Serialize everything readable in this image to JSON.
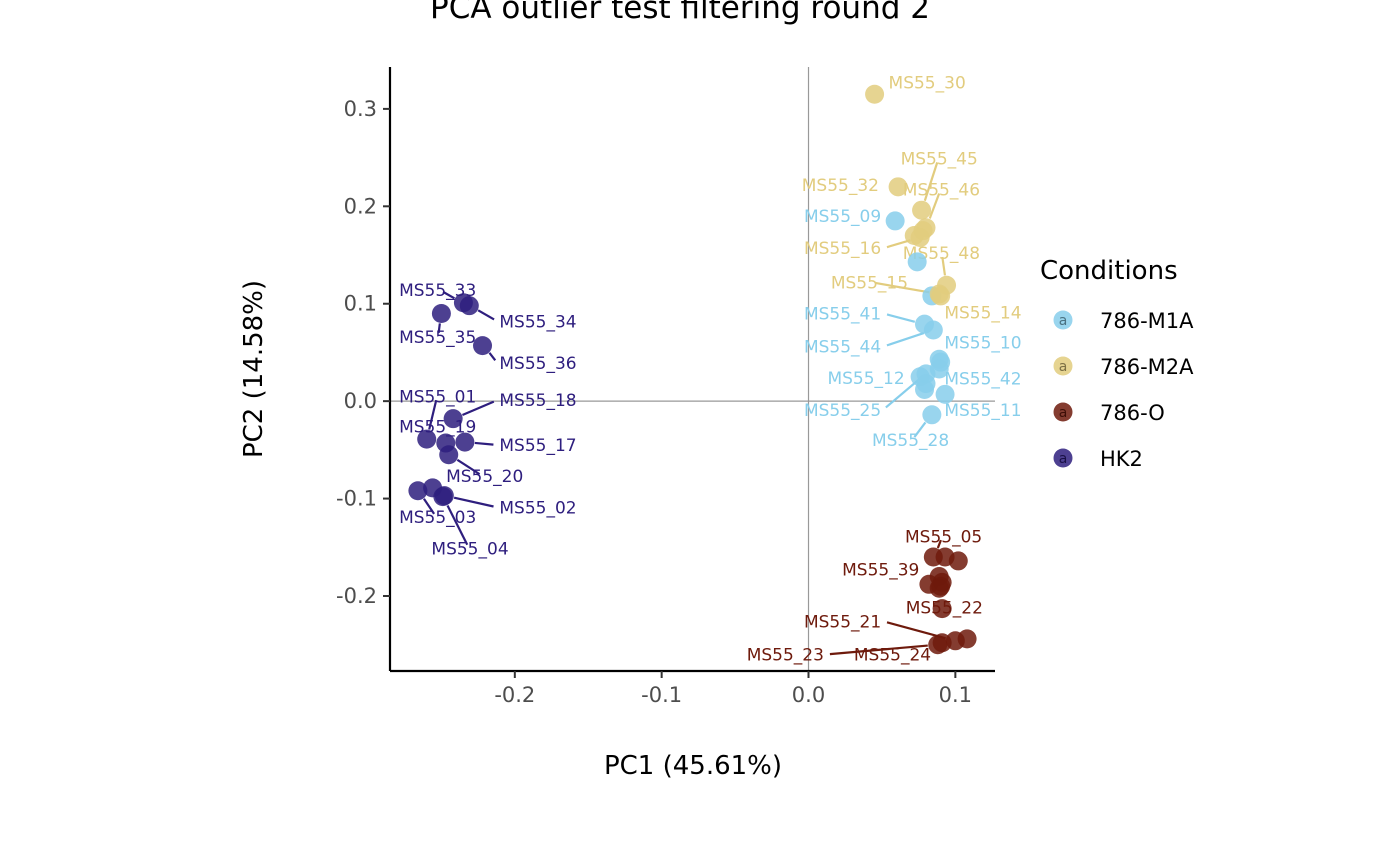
{
  "chart_data": {
    "type": "scatter",
    "title": "PCA outlier test filtering round  2",
    "xlabel": "PC1 (45.61%)",
    "ylabel": "PC2 (14.58%)",
    "xlim": [
      -0.285,
      0.127
    ],
    "ylim": [
      -0.277,
      0.343
    ],
    "xticks": [
      -0.2,
      -0.1,
      0.0,
      0.1
    ],
    "xtick_labels": [
      "-0.2",
      "-0.1",
      "0.0",
      "0.1"
    ],
    "yticks": [
      -0.2,
      -0.1,
      0.0,
      0.1,
      0.2,
      0.3
    ],
    "ytick_labels": [
      "-0.2",
      "-0.1",
      "0.0",
      "0.1",
      "0.2",
      "0.3"
    ],
    "reference_lines": {
      "x": 0,
      "y": 0
    },
    "grid": false,
    "legend": {
      "title": "Conditions",
      "position": "right",
      "glyph": "a",
      "entries": [
        {
          "name": "786-M1A",
          "color": "#87CEEB"
        },
        {
          "name": "786-M2A",
          "color": "#E2CC7E"
        },
        {
          "name": "786-O",
          "color": "#6E1A0C"
        },
        {
          "name": "HK2",
          "color": "#2E1E7E"
        }
      ]
    },
    "series": [
      {
        "name": "786-M1A",
        "color": "#87CEEB",
        "points": [
          {
            "x": 0.059,
            "y": 0.185,
            "label": "MS55_09",
            "lx": 0.0495,
            "ly": 0.19,
            "anchor": "end"
          },
          {
            "x": 0.074,
            "y": 0.143
          },
          {
            "x": 0.084,
            "y": 0.108
          },
          {
            "x": 0.079,
            "y": 0.079,
            "label": "MS55_41",
            "lx": 0.0495,
            "ly": 0.09,
            "anchor": "end"
          },
          {
            "x": 0.085,
            "y": 0.073,
            "label": "MS55_44",
            "lx": 0.0495,
            "ly": 0.056,
            "anchor": "end"
          },
          {
            "x": 0.089,
            "y": 0.043,
            "label": "MS55_10",
            "lx": 0.0925,
            "ly": 0.06,
            "anchor": "start"
          },
          {
            "x": 0.09,
            "y": 0.04
          },
          {
            "x": 0.089,
            "y": 0.033,
            "label": "MS55_42",
            "lx": 0.0925,
            "ly": 0.023,
            "anchor": "start"
          },
          {
            "x": 0.076,
            "y": 0.025,
            "label": "MS55_12",
            "lx": 0.0655,
            "ly": 0.024,
            "anchor": "end"
          },
          {
            "x": 0.08,
            "y": 0.018
          },
          {
            "x": 0.079,
            "y": 0.012
          },
          {
            "x": 0.093,
            "y": 0.007,
            "label": "MS55_11",
            "lx": 0.0925,
            "ly": -0.009,
            "anchor": "start"
          },
          {
            "x": 0.084,
            "y": -0.014,
            "label": "MS55_28",
            "lx": 0.0695,
            "ly": -0.04,
            "anchor": "middle"
          },
          {
            "x": 0.08,
            "y": 0.028,
            "label": "MS55_25",
            "lx": 0.0495,
            "ly": -0.009,
            "anchor": "end"
          }
        ]
      },
      {
        "name": "786-M2A",
        "color": "#E2CC7E",
        "points": [
          {
            "x": 0.045,
            "y": 0.315,
            "label": "MS55_30",
            "lx": 0.0545,
            "ly": 0.327,
            "anchor": "start"
          },
          {
            "x": 0.061,
            "y": 0.22,
            "label": "MS55_32",
            "lx": 0.048,
            "ly": 0.222,
            "anchor": "end"
          },
          {
            "x": 0.077,
            "y": 0.196,
            "label": "MS55_45",
            "lx": 0.089,
            "ly": 0.249,
            "anchor": "middle"
          },
          {
            "x": 0.08,
            "y": 0.178,
            "label": "MS55_46",
            "lx": 0.0905,
            "ly": 0.217,
            "anchor": "middle"
          },
          {
            "x": 0.072,
            "y": 0.17
          },
          {
            "x": 0.078,
            "y": 0.175
          },
          {
            "x": 0.094,
            "y": 0.119,
            "label": "MS55_48",
            "lx": 0.0905,
            "ly": 0.152,
            "anchor": "middle"
          },
          {
            "x": 0.089,
            "y": 0.11,
            "label": "MS55_15",
            "lx": 0.0415,
            "ly": 0.122,
            "anchor": "middle"
          },
          {
            "x": 0.09,
            "y": 0.108,
            "label": "MS55_14",
            "lx": 0.0925,
            "ly": 0.091,
            "anchor": "start"
          },
          {
            "x": 0.076,
            "y": 0.168,
            "label": "MS55_16",
            "lx": 0.0495,
            "ly": 0.157,
            "anchor": "end"
          }
        ]
      },
      {
        "name": "786-O",
        "color": "#6E1A0C",
        "points": [
          {
            "x": 0.085,
            "y": -0.16,
            "label": "MS55_05",
            "lx": 0.092,
            "ly": -0.139,
            "anchor": "middle"
          },
          {
            "x": 0.093,
            "y": -0.16
          },
          {
            "x": 0.102,
            "y": -0.164
          },
          {
            "x": 0.089,
            "y": -0.18,
            "label": "MS55_39",
            "lx": 0.0755,
            "ly": -0.173,
            "anchor": "end"
          },
          {
            "x": 0.082,
            "y": -0.188
          },
          {
            "x": 0.09,
            "y": -0.19
          },
          {
            "x": 0.091,
            "y": -0.186
          },
          {
            "x": 0.089,
            "y": -0.192
          },
          {
            "x": 0.091,
            "y": -0.213,
            "label": "MS55_22",
            "lx": 0.0925,
            "ly": -0.212,
            "anchor": "middle"
          },
          {
            "x": 0.108,
            "y": -0.244
          },
          {
            "x": 0.1,
            "y": -0.246,
            "label": "MS55_21",
            "lx": 0.0495,
            "ly": -0.226,
            "anchor": "end"
          },
          {
            "x": 0.091,
            "y": -0.248,
            "label": "MS55_24",
            "lx": 0.0835,
            "ly": -0.26,
            "anchor": "end"
          },
          {
            "x": 0.088,
            "y": -0.25,
            "label": "MS55_23",
            "lx": 0.0105,
            "ly": -0.26,
            "anchor": "end"
          }
        ]
      },
      {
        "name": "HK2",
        "color": "#2E1E7E",
        "points": [
          {
            "x": -0.235,
            "y": 0.101,
            "label": "MS55_33",
            "lx": -0.2525,
            "ly": 0.114,
            "anchor": "middle"
          },
          {
            "x": -0.231,
            "y": 0.098,
            "label": "MS55_34",
            "lx": -0.2105,
            "ly": 0.082,
            "anchor": "start"
          },
          {
            "x": -0.25,
            "y": 0.09,
            "label": "MS55_35",
            "lx": -0.2525,
            "ly": 0.066,
            "anchor": "middle"
          },
          {
            "x": -0.222,
            "y": 0.057,
            "label": "MS55_36",
            "lx": -0.2105,
            "ly": 0.039,
            "anchor": "start"
          },
          {
            "x": -0.242,
            "y": -0.018,
            "label": "MS55_18",
            "lx": -0.2105,
            "ly": 0.001,
            "anchor": "start"
          },
          {
            "x": -0.26,
            "y": -0.039,
            "label": "MS55_01",
            "lx": -0.2525,
            "ly": 0.005,
            "anchor": "middle"
          },
          {
            "x": -0.247,
            "y": -0.043,
            "label": "MS55_19",
            "lx": -0.2525,
            "ly": -0.026,
            "anchor": "middle"
          },
          {
            "x": -0.234,
            "y": -0.042,
            "label": "MS55_17",
            "lx": -0.2105,
            "ly": -0.045,
            "anchor": "start"
          },
          {
            "x": -0.245,
            "y": -0.055,
            "label": "MS55_20",
            "lx": -0.2205,
            "ly": -0.077,
            "anchor": "middle"
          },
          {
            "x": -0.256,
            "y": -0.089
          },
          {
            "x": -0.266,
            "y": -0.092,
            "label": "MS55_03",
            "lx": -0.2525,
            "ly": -0.119,
            "anchor": "middle"
          },
          {
            "x": -0.248,
            "y": -0.097,
            "label": "MS55_02",
            "lx": -0.2105,
            "ly": -0.109,
            "anchor": "start"
          },
          {
            "x": -0.249,
            "y": -0.098,
            "label": "MS55_04",
            "lx": -0.2305,
            "ly": -0.151,
            "anchor": "middle"
          }
        ]
      }
    ]
  }
}
